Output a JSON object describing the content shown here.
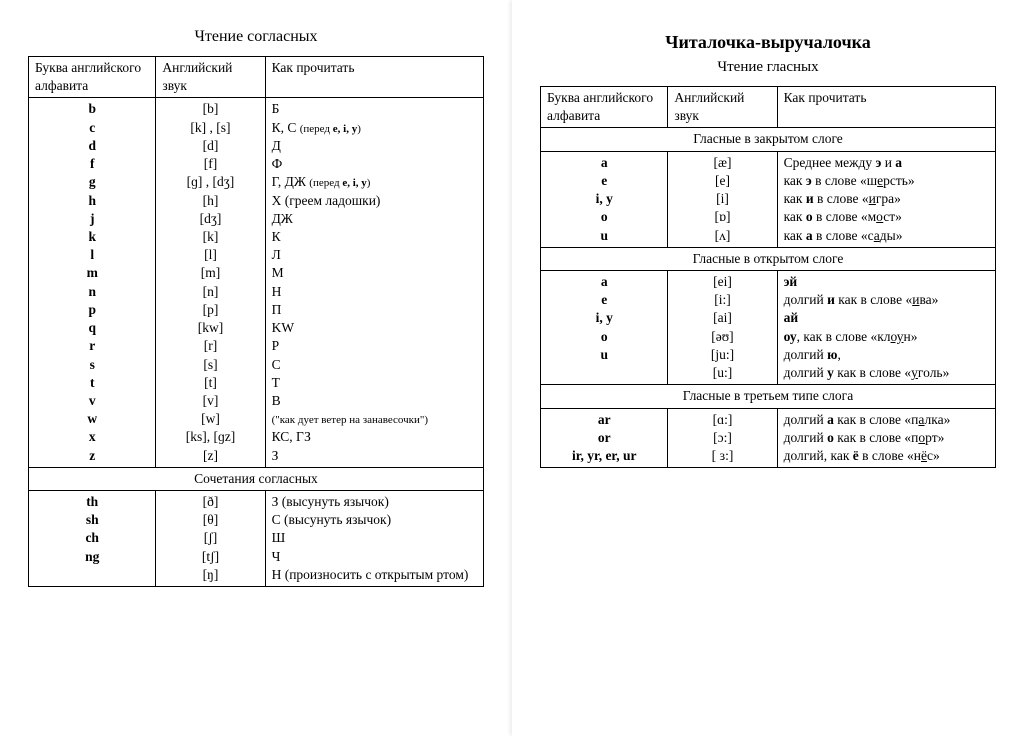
{
  "left": {
    "title": "Чтение согласных",
    "headers": [
      "Буква английского алфавита",
      "Английский звук",
      "Как прочитать"
    ],
    "rows": [
      [
        "b",
        "[b]",
        "Б"
      ],
      [
        "c",
        "[k] , [s]",
        "К,  С <span class='mini'>(перед <b>e, i, y</b>)</span>"
      ],
      [
        "d",
        "[d]",
        "Д"
      ],
      [
        "f",
        "[f]",
        "Ф"
      ],
      [
        "g",
        "[ɡ] , [dʒ]",
        "Г,  ДЖ <span class='mini'>(перед <b>e, i, y</b>)</span>"
      ],
      [
        "h",
        "[h]",
        "Х (греем ладошки)"
      ],
      [
        "j",
        "[dʒ]",
        "ДЖ"
      ],
      [
        "k",
        "[k]",
        "К"
      ],
      [
        "l",
        "[l]",
        "Л"
      ],
      [
        "m",
        "[m]",
        "М"
      ],
      [
        "n",
        "[n]",
        "Н"
      ],
      [
        "p",
        "[p]",
        "П"
      ],
      [
        "q",
        "[kw]",
        "KW"
      ],
      [
        "r",
        "[r]",
        "Р"
      ],
      [
        "s",
        "[s]",
        "С"
      ],
      [
        "t",
        "[t]",
        "Т"
      ],
      [
        "v",
        "[v]",
        "В"
      ],
      [
        "w",
        "[w]",
        "<span class='mini'>(\"как дует ветер на занавесочки\")</span>"
      ],
      [
        "x",
        "[ks], [ɡz]",
        "КС, ГЗ"
      ],
      [
        "z",
        "[z]",
        "З"
      ]
    ],
    "section2": "Сочетания согласных",
    "rows2": [
      [
        "th",
        "[ð]<br>[θ]",
        "З (высунуть язычок)<br>С (высунуть язычок)"
      ],
      [
        "sh",
        "[ʃ]",
        "Ш"
      ],
      [
        "ch",
        "[tʃ]",
        "Ч"
      ],
      [
        "ng",
        "[ŋ]",
        "Н (произносить с открытым ртом)"
      ]
    ]
  },
  "right": {
    "mainTitle": "Читалочка-выручалочка",
    "subtitle": "Чтение гласных",
    "headers": [
      "Буква английского алфавита",
      "Английский звук",
      "Как прочитать"
    ],
    "sec1": "Гласные в закрытом слоге",
    "rows1": [
      [
        "a",
        "[æ]",
        "Среднее между <b>э</b> и <b>а</b>"
      ],
      [
        "e",
        "[e]",
        "как <b>э</b> в слове «ш<u>е</u>рсть»"
      ],
      [
        "i, y",
        "[i]",
        "как <b>и</b> в слове «<u>и</u>гра»"
      ],
      [
        "o",
        "[ɒ]",
        "как <b>о</b> в слове «м<u>о</u>ст»"
      ],
      [
        "u",
        "[ʌ]",
        "как <b>а</b> в слове «с<u>а</u>ды»"
      ]
    ],
    "sec2": "Гласные в открытом слоге",
    "rows2": [
      [
        "a",
        "[ei]",
        "<b>эй</b>"
      ],
      [
        "e",
        "[i:]",
        "долгий <b>и</b> как в слове «<u>и</u>ва»"
      ],
      [
        "i, y",
        "[ai]",
        "<b>ай</b>"
      ],
      [
        "o",
        "[əʊ]",
        "<b>оу</b>, как в слове «кл<u>оу</u>н»"
      ],
      [
        "u",
        "[ju:]<br>[u:]",
        "долгий <b>ю</b>,<br>долгий <b>у</b> как в слове «<u>у</u>голь»"
      ]
    ],
    "sec3": "Гласные в третьем типе слога",
    "rows3": [
      [
        "ar",
        "[ɑ:]",
        "долгий <b>а</b> как в слове «п<u>а</u>лка»"
      ],
      [
        "or",
        "[ɔ:]",
        "долгий <b>о</b> как в слове «п<u>о</u>рт»"
      ],
      [
        "ir, yr, er, ur",
        "[ ɜ:]",
        "долгий, как <b>ё</b> в слове «н<u>ё</u>с»"
      ]
    ]
  }
}
